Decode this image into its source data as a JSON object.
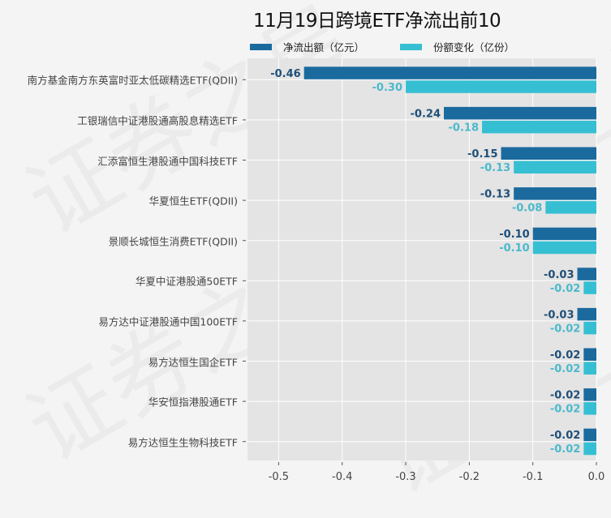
{
  "watermark": "证券之星",
  "chart_data": {
    "type": "bar",
    "orientation": "horizontal",
    "title": "11月19日跨境ETF净流出前10",
    "xlabel": "",
    "ylabel": "",
    "xlim": [
      -0.549,
      0.0
    ],
    "xticks": [
      -0.5,
      -0.4,
      -0.3,
      -0.2,
      -0.1,
      0.0
    ],
    "xtick_labels": [
      "-0.5",
      "-0.4",
      "-0.3",
      "-0.2",
      "-0.1",
      "0.0"
    ],
    "grid": true,
    "legend_position": "top",
    "categories": [
      "南方基金南方东英富时亚太低碳精选ETF(QDII)",
      "工银瑞信中证港股通高股息精选ETF",
      "汇添富恒生港股通中国科技ETF",
      "华夏恒生ETF(QDII)",
      "景顺长城恒生消费ETF(QDII)",
      "华夏中证港股通50ETF",
      "易方达中证港股通中国100ETF",
      "易方达恒生国企ETF",
      "华安恒指港股通ETF",
      "易方达恒生生物科技ETF"
    ],
    "series": [
      {
        "name": "净流出额（亿元）",
        "color": "#1a6a9e",
        "label_color": "#1f4f78",
        "values": [
          -0.46,
          -0.24,
          -0.15,
          -0.13,
          -0.1,
          -0.03,
          -0.03,
          -0.02,
          -0.02,
          -0.02
        ],
        "labels": [
          "-0.46",
          "-0.24",
          "-0.15",
          "-0.13",
          "-0.10",
          "-0.03",
          "-0.03",
          "-0.02",
          "-0.02",
          "-0.02"
        ]
      },
      {
        "name": "份额变化（亿份）",
        "color": "#36bfd3",
        "label_color": "#4bb9cc",
        "values": [
          -0.3,
          -0.18,
          -0.13,
          -0.08,
          -0.1,
          -0.02,
          -0.02,
          -0.02,
          -0.02,
          -0.02
        ],
        "labels": [
          "-0.30",
          "-0.18",
          "-0.13",
          "-0.08",
          "-0.10",
          "-0.02",
          "-0.02",
          "-0.02",
          "-0.02",
          "-0.02"
        ]
      }
    ]
  }
}
